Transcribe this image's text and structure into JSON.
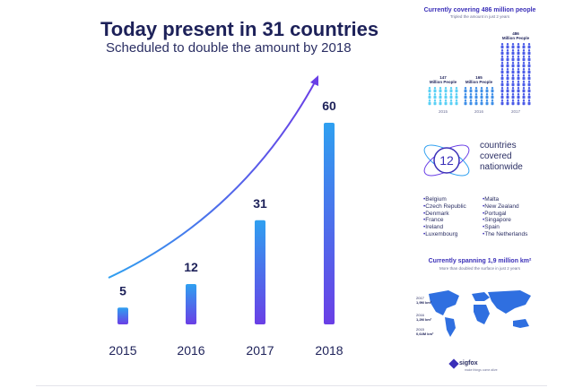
{
  "header": {
    "title": "Today present in 31 countries",
    "subtitle": "Scheduled to double the amount by 2018"
  },
  "chart_data": [
    {
      "type": "bar",
      "categories": [
        "2015",
        "2016",
        "2017",
        "2018"
      ],
      "values": [
        5,
        12,
        31,
        60
      ],
      "data_labels": [
        "5",
        "12",
        "31",
        "60"
      ],
      "title": "Today present in 31 countries",
      "subtitle": "Scheduled to double the amount by 2018",
      "ylim": [
        0,
        60
      ],
      "grid": false,
      "trend_arrow": true,
      "bar_colors": [
        "#2fa0f0",
        "#6a3fe6"
      ]
    },
    {
      "type": "bar",
      "title": "Currently covering 486 million people",
      "subtitle": "Tripled the amount in just 2 years",
      "categories": [
        "2015",
        "2016",
        "2017"
      ],
      "values": [
        147,
        165,
        486
      ],
      "data_labels": [
        "147\nMillion People",
        "165\nMillion People",
        "486\nMillion People"
      ]
    }
  ],
  "people": {
    "title": "Currently covering 486 million people",
    "subtitle": "Tripled the amount in just 2 years",
    "groups": [
      {
        "value_label": "147",
        "unit": "Million People",
        "year": "2015"
      },
      {
        "value_label": "165",
        "unit": "Million People",
        "year": "2016"
      },
      {
        "value_label": "486",
        "unit": "Million People",
        "year": "2017"
      }
    ]
  },
  "countries": {
    "count": "12",
    "text_line1": "countries",
    "text_line2": "covered",
    "text_line3": "nationwide",
    "left_list": [
      "Belgium",
      "Czech Republic",
      "Denmark",
      "France",
      "Ireland",
      "Luxembourg"
    ],
    "right_list": [
      "Malta",
      "New Zealand",
      "Portugal",
      "Singapore",
      "Spain",
      "The Netherlands"
    ]
  },
  "map": {
    "title": "Currently spanning 1,9 million km²",
    "subtitle": "More than doubled the surface in just 2 years",
    "labels": [
      {
        "year": "2017",
        "value": "1,9M km²"
      },
      {
        "year": "2016",
        "value": "1,2M km²"
      },
      {
        "year": "2015",
        "value": "0,64M km²"
      }
    ]
  },
  "logo": {
    "name": "sigfox",
    "tagline": "make things come alive"
  },
  "colors": {
    "bar_gradient_start": "#2fa0f0",
    "bar_gradient_end": "#6a3fe6",
    "text_dark": "#1d2159",
    "accent": "#3a2fb8"
  }
}
